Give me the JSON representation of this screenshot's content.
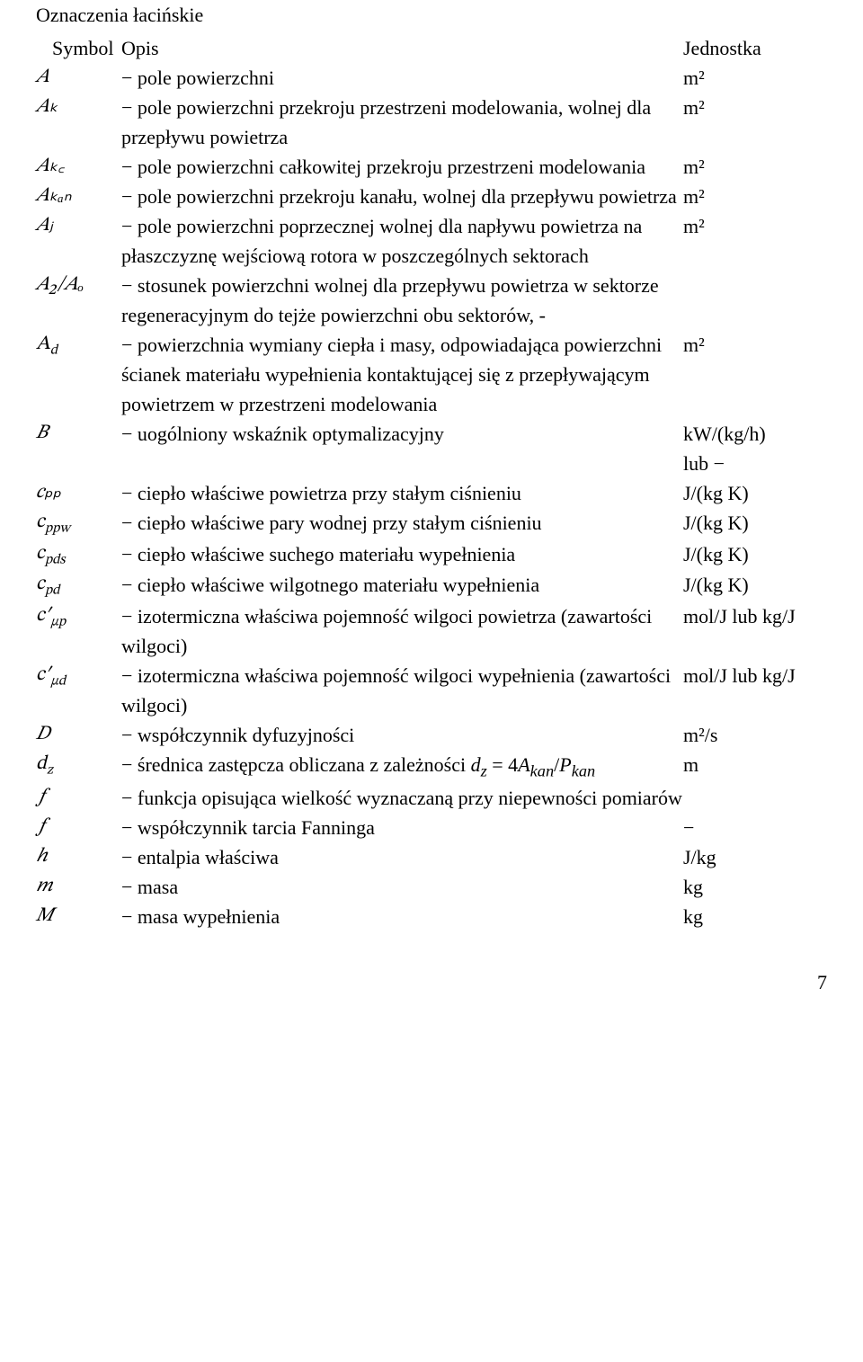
{
  "page": {
    "title": "Oznaczenia łacińskie",
    "header": {
      "symbol": "Symbol",
      "desc": "Opis",
      "unit": "Jednostka"
    },
    "pagenum": "7"
  },
  "rows": [
    {
      "sym": "𝐴",
      "desc": "− pole powierzchni",
      "unit": "m²"
    },
    {
      "sym": "𝐴ₖ",
      "desc": "− pole powierzchni przekroju przestrzeni modelowania, wolnej dla przepływu powietrza",
      "unit": "m²"
    },
    {
      "sym": "𝐴ₖ꜀",
      "desc": "− pole powierzchni całkowitej przekroju przestrzeni modelowania",
      "unit": "m²"
    },
    {
      "sym": "𝐴ₖₐₙ",
      "desc": "− pole powierzchni przekroju kanału, wolnej dla przepływu powietrza",
      "unit": "m²"
    },
    {
      "sym": "𝐴ⱼ",
      "desc": "− pole powierzchni poprzecznej wolnej dla napływu powietrza na płaszczyznę wejściową rotora w poszczególnych sektorach",
      "unit": "m²"
    },
    {
      "sym": "𝐴₂/𝐴ₒ",
      "desc": "− stosunek powierzchni wolnej dla przepływu powietrza w sektorze regeneracyjnym do tejże powierzchni obu sektorów, -",
      "unit": ""
    },
    {
      "sym": "𝐴𝑑",
      "sym_html": "<span style='font-style:italic'>A<sub style='font-size:0.7em'>d</sub></span>",
      "desc": "− powierzchnia wymiany ciepła i masy, odpowiadająca powierzchni ścianek materiału wypełnienia kontaktującej się z przepływającym powietrzem w przestrzeni modelowania",
      "unit": "m²"
    },
    {
      "sym": "𝐵",
      "desc": "− uogólniony wskaźnik optymalizacyjny",
      "unit": "kW/(kg/h)",
      "unit2": "lub −"
    },
    {
      "sym": "𝑐ₚₚ",
      "desc": "− ciepło właściwe powietrza przy stałym ciśnieniu",
      "unit": "J/(kg K)"
    },
    {
      "sym": "𝑐ₚₚ𝓌",
      "sym_html": "<span style='font-style:italic'>c<sub style='font-size:0.7em'>ppw</sub></span>",
      "desc": "− ciepło właściwe pary wodnej przy stałym ciśnieniu",
      "unit": "J/(kg K)"
    },
    {
      "sym": "𝑐ₚ𝒹ₛ",
      "sym_html": "<span style='font-style:italic'>c<sub style='font-size:0.7em'>pds</sub></span>",
      "desc": "− ciepło właściwe suchego materiału wypełnienia",
      "unit": "J/(kg K)"
    },
    {
      "sym": "𝑐ₚ𝒹",
      "sym_html": "<span style='font-style:italic'>c<sub style='font-size:0.7em'>pd</sub></span>",
      "desc": "− ciepło właściwe wilgotnego materiału wypełnienia",
      "unit": "J/(kg K)"
    },
    {
      "sym": "𝑐′μp",
      "sym_html": "<span style='font-style:italic'>c′<sub style='font-size:0.7em'>μp</sub></span>",
      "desc": "− izotermiczna właściwa pojemność wilgoci powietrza (zawartości wilgoci)",
      "unit": "mol/J lub kg/J"
    },
    {
      "sym": "𝑐′μd",
      "sym_html": "<span style='font-style:italic'>c′<sub style='font-size:0.7em'>μd</sub></span>",
      "desc": "− izotermiczna właściwa pojemność wilgoci wypełnienia (zawartości wilgoci)",
      "unit": "mol/J lub kg/J"
    },
    {
      "sym": "𝐷",
      "desc": "− współczynnik dyfuzyjności",
      "unit": "m²/s"
    },
    {
      "sym": "𝑑𝓏",
      "sym_html": "<span style='font-style:italic'>d<sub style='font-size:0.7em'>z</sub></span>",
      "desc_html": "− średnica zastępcza obliczana z zależności <span style='font-style:italic'>d<sub>z</sub></span> = 4<span style='font-style:italic'>A<sub>kan</sub></span>/<span style='font-style:italic'>P<sub>kan</sub></span>",
      "desc": "− średnica zastępcza obliczana z zależności d_z = 4A_kan/P_kan",
      "unit": "m"
    },
    {
      "sym": "𝑓",
      "desc": "− funkcja opisująca wielkość wyznaczaną przy niepewności pomiarów",
      "unit": ""
    },
    {
      "sym": "𝑓",
      "desc": "− współczynnik tarcia Fanninga",
      "unit": "−"
    },
    {
      "sym": "ℎ",
      "desc": "− entalpia właściwa",
      "unit": "J/kg"
    },
    {
      "sym": "𝑚",
      "desc": "− masa",
      "unit": "kg"
    },
    {
      "sym": "𝑀",
      "desc": "− masa wypełnienia",
      "unit": "kg"
    }
  ]
}
